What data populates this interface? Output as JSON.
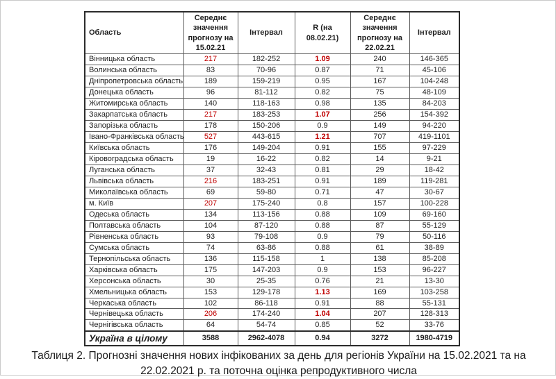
{
  "colors": {
    "highlight_red": "#c00000",
    "border_dark": "#2b2b2b",
    "border_inner": "#5a5a5a"
  },
  "table": {
    "headers": [
      "Область",
      "Середнє значення прогнозу на 15.02.21",
      "Інтервал",
      "R (на 08.02.21)",
      "Середнє значення прогнозу на 22.02.21",
      "Інтервал"
    ],
    "rows": [
      {
        "region": "Вінницька область",
        "forecast_15": "217",
        "red_forecast_15": true,
        "interval_15": "182-252",
        "r": "1.09",
        "red_r": true,
        "forecast_22": "240",
        "interval_22": "146-365"
      },
      {
        "region": "Волинська область",
        "forecast_15": "83",
        "interval_15": "70-96",
        "r": "0.87",
        "forecast_22": "71",
        "interval_22": "45-106"
      },
      {
        "region": "Дніпропетровська область",
        "forecast_15": "189",
        "interval_15": "159-219",
        "r": "0.95",
        "forecast_22": "167",
        "interval_22": "104-248"
      },
      {
        "region": "Донецька область",
        "forecast_15": "96",
        "interval_15": "81-112",
        "r": "0.82",
        "forecast_22": "75",
        "interval_22": "48-109"
      },
      {
        "region": "Житомирська область",
        "forecast_15": "140",
        "interval_15": "118-163",
        "r": "0.98",
        "forecast_22": "135",
        "interval_22": "84-203"
      },
      {
        "region": "Закарпатська область",
        "forecast_15": "217",
        "red_forecast_15": true,
        "interval_15": "183-253",
        "r": "1.07",
        "red_r": true,
        "forecast_22": "256",
        "interval_22": "154-392"
      },
      {
        "region": "Запорізька область",
        "forecast_15": "178",
        "interval_15": "150-206",
        "r": "0.9",
        "forecast_22": "149",
        "interval_22": "94-220"
      },
      {
        "region": "Івано-Франківська область",
        "forecast_15": "527",
        "red_forecast_15": true,
        "interval_15": "443-615",
        "r": "1.21",
        "red_r": true,
        "forecast_22": "707",
        "interval_22": "419-1101"
      },
      {
        "region": "Київська область",
        "forecast_15": "176",
        "interval_15": "149-204",
        "r": "0.91",
        "forecast_22": "155",
        "interval_22": "97-229"
      },
      {
        "region": "Кіровоградська область",
        "forecast_15": "19",
        "interval_15": "16-22",
        "r": "0.82",
        "forecast_22": "14",
        "interval_22": "9-21"
      },
      {
        "region": "Луганська область",
        "forecast_15": "37",
        "interval_15": "32-43",
        "r": "0.81",
        "forecast_22": "29",
        "interval_22": "18-42"
      },
      {
        "region": "Львівська область",
        "forecast_15": "216",
        "red_forecast_15": true,
        "interval_15": "183-251",
        "r": "0.91",
        "forecast_22": "189",
        "interval_22": "119-281"
      },
      {
        "region": "Миколаївська область",
        "forecast_15": "69",
        "interval_15": "59-80",
        "r": "0.71",
        "forecast_22": "47",
        "interval_22": "30-67"
      },
      {
        "region": "м. Київ",
        "forecast_15": "207",
        "red_forecast_15": true,
        "interval_15": "175-240",
        "r": "0.8",
        "forecast_22": "157",
        "interval_22": "100-228"
      },
      {
        "region": "Одеська область",
        "forecast_15": "134",
        "interval_15": "113-156",
        "r": "0.88",
        "forecast_22": "109",
        "interval_22": "69-160"
      },
      {
        "region": "Полтавська область",
        "forecast_15": "104",
        "interval_15": "87-120",
        "r": "0.88",
        "forecast_22": "87",
        "interval_22": "55-129"
      },
      {
        "region": "Рівненська область",
        "forecast_15": "93",
        "interval_15": "79-108",
        "r": "0.9",
        "forecast_22": "79",
        "interval_22": "50-116"
      },
      {
        "region": "Сумська область",
        "forecast_15": "74",
        "interval_15": "63-86",
        "r": "0.88",
        "forecast_22": "61",
        "interval_22": "38-89"
      },
      {
        "region": "Тернопільська область",
        "forecast_15": "136",
        "interval_15": "115-158",
        "r": "1",
        "forecast_22": "138",
        "interval_22": "85-208"
      },
      {
        "region": "Харківська область",
        "forecast_15": "175",
        "interval_15": "147-203",
        "r": "0.9",
        "forecast_22": "153",
        "interval_22": "96-227"
      },
      {
        "region": "Херсонська область",
        "forecast_15": "30",
        "interval_15": "25-35",
        "r": "0.76",
        "forecast_22": "21",
        "interval_22": "13-30"
      },
      {
        "region": "Хмельницька область",
        "forecast_15": "153",
        "interval_15": "129-178",
        "r": "1.13",
        "red_r": true,
        "forecast_22": "169",
        "interval_22": "103-258"
      },
      {
        "region": "Черкаська область",
        "forecast_15": "102",
        "interval_15": "86-118",
        "r": "0.91",
        "forecast_22": "88",
        "interval_22": "55-131"
      },
      {
        "region": "Чернівецька область",
        "forecast_15": "206",
        "red_forecast_15": true,
        "interval_15": "174-240",
        "r": "1.04",
        "red_r": true,
        "forecast_22": "207",
        "interval_22": "128-313"
      },
      {
        "region": "Чернігівська область",
        "forecast_15": "64",
        "interval_15": "54-74",
        "r": "0.85",
        "forecast_22": "52",
        "interval_22": "33-76"
      }
    ],
    "total": {
      "region": "Україна в цілому",
      "forecast_15": "3588",
      "interval_15": "2962-4078",
      "r": "0.94",
      "forecast_22": "3272",
      "interval_22": "1980-4719"
    }
  },
  "caption": {
    "line1": "Таблиця 2. Прогнозні значення нових інфікованих за день для регіонів України на 15.02.2021 та на",
    "line2": "22.02.2021 р. та поточна оцінка репродуктивного числа"
  }
}
